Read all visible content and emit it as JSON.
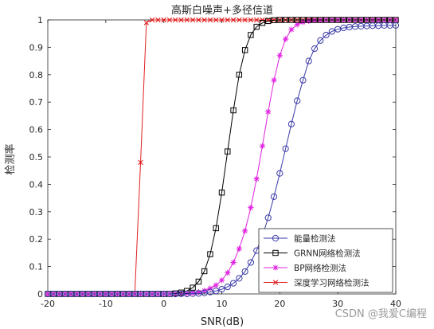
{
  "chart_data": {
    "type": "line",
    "title": "高斯白噪声+多径信道",
    "xlabel": "SNR(dB)",
    "ylabel": "检测率",
    "xlim": [
      -20,
      40
    ],
    "ylim": [
      0,
      1
    ],
    "xticks": [
      -20,
      -10,
      0,
      10,
      20,
      30,
      40
    ],
    "yticks": [
      0,
      0.1,
      0.2,
      0.3,
      0.4,
      0.5,
      0.6,
      0.7,
      0.8,
      0.9,
      1
    ],
    "grid": false,
    "legend_position": "bottom-right",
    "x": [
      -20,
      -19,
      -18,
      -17,
      -16,
      -15,
      -14,
      -13,
      -12,
      -11,
      -10,
      -9,
      -8,
      -7,
      -6,
      -5,
      -4,
      -3,
      -2,
      -1,
      0,
      1,
      2,
      3,
      4,
      5,
      6,
      7,
      8,
      9,
      10,
      11,
      12,
      13,
      14,
      15,
      16,
      17,
      18,
      19,
      20,
      21,
      22,
      23,
      24,
      25,
      26,
      27,
      28,
      29,
      30,
      31,
      32,
      33,
      34,
      35,
      36,
      37,
      38,
      39,
      40
    ],
    "series": [
      {
        "name": "能量检测法",
        "color": "#3a3aa8",
        "marker": "circle",
        "values": [
          0,
          0,
          0,
          0,
          0,
          0,
          0,
          0,
          0,
          0,
          0,
          0,
          0,
          0,
          0,
          0,
          0,
          0,
          0,
          0,
          0,
          0,
          0,
          0,
          0,
          0.001,
          0.002,
          0.004,
          0.007,
          0.011,
          0.017,
          0.026,
          0.039,
          0.057,
          0.082,
          0.115,
          0.158,
          0.212,
          0.278,
          0.355,
          0.44,
          0.53,
          0.62,
          0.705,
          0.78,
          0.85,
          0.895,
          0.925,
          0.945,
          0.958,
          0.966,
          0.971,
          0.974,
          0.976,
          0.977,
          0.978,
          0.979,
          0.979,
          0.98,
          0.98,
          0.98
        ]
      },
      {
        "name": "GRNN网络检测法",
        "color": "#000000",
        "marker": "square",
        "values": [
          0,
          0,
          0,
          0,
          0,
          0,
          0,
          0,
          0,
          0,
          0,
          0,
          0,
          0,
          0,
          0,
          0,
          0,
          0,
          0,
          0,
          0,
          0.002,
          0.005,
          0.011,
          0.023,
          0.045,
          0.083,
          0.145,
          0.24,
          0.37,
          0.52,
          0.67,
          0.8,
          0.89,
          0.945,
          0.975,
          0.989,
          0.996,
          0.999,
          1,
          1,
          1,
          1,
          1,
          1,
          1,
          1,
          1,
          1,
          1,
          1,
          1,
          1,
          1,
          1,
          1,
          1,
          1,
          1,
          1
        ]
      },
      {
        "name": "BP网络检测法",
        "color": "#e020e0",
        "marker": "asterisk",
        "values": [
          0,
          0,
          0,
          0,
          0,
          0,
          0,
          0,
          0,
          0,
          0,
          0,
          0,
          0,
          0,
          0,
          0,
          0,
          0,
          0,
          0,
          0,
          0,
          0.001,
          0.002,
          0.004,
          0.007,
          0.012,
          0.02,
          0.032,
          0.05,
          0.077,
          0.115,
          0.165,
          0.23,
          0.315,
          0.42,
          0.54,
          0.665,
          0.78,
          0.87,
          0.93,
          0.965,
          0.983,
          0.992,
          0.996,
          0.998,
          0.999,
          1,
          1,
          1,
          1,
          1,
          1,
          1,
          1,
          1,
          1,
          1,
          1,
          1
        ]
      },
      {
        "name": "深度学习网络检测法",
        "color": "#e02020",
        "marker": "x",
        "values": [
          0,
          0,
          0,
          0,
          0,
          0,
          0,
          0,
          0,
          0,
          0,
          0,
          0,
          0,
          0,
          0,
          0.48,
          0.99,
          1,
          1,
          1,
          1,
          1,
          1,
          1,
          1,
          1,
          1,
          1,
          1,
          1,
          1,
          1,
          1,
          1,
          1,
          1,
          1,
          1,
          1,
          1,
          1,
          1,
          1,
          1,
          1,
          1,
          1,
          1,
          1,
          1,
          1,
          1,
          1,
          1,
          1,
          1,
          1,
          1,
          1,
          1
        ]
      }
    ]
  },
  "watermark": "CSDN @我爱C编程"
}
